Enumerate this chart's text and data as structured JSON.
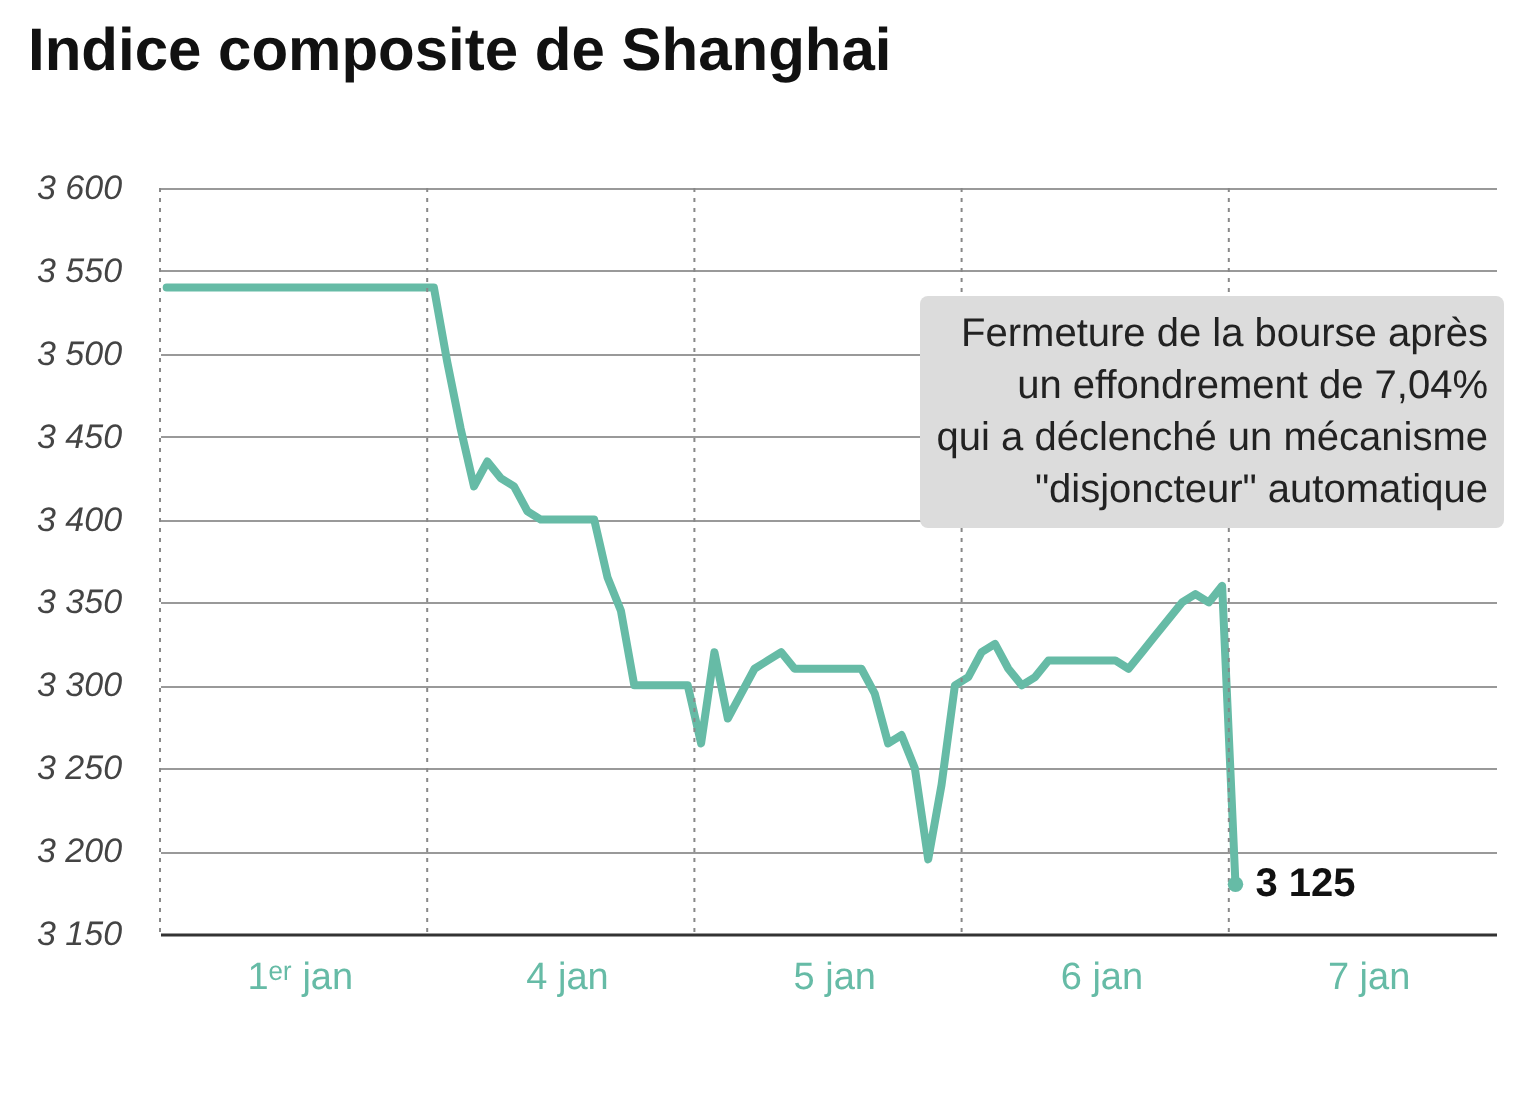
{
  "chart_data": {
    "type": "line",
    "title": "Indice composite de Shanghai",
    "categories": [
      null,
      null,
      null,
      null,
      null,
      null,
      null,
      null,
      null,
      null,
      "1ᵉʳ jan",
      null,
      null,
      null,
      null,
      null,
      null,
      null,
      null,
      null,
      null,
      null,
      null,
      null,
      null,
      null,
      null,
      null,
      null,
      null,
      "4 jan",
      null,
      null,
      null,
      null,
      null,
      null,
      null,
      null,
      null,
      null,
      null,
      null,
      null,
      null,
      null,
      null,
      null,
      null,
      null,
      "5 jan",
      null,
      null,
      null,
      null,
      null,
      null,
      null,
      null,
      null,
      null,
      null,
      null,
      null,
      null,
      null,
      null,
      null,
      null,
      null,
      "6 jan",
      null,
      null,
      null,
      null,
      null,
      null,
      null,
      null,
      null,
      null,
      null,
      null,
      null,
      null,
      null,
      null,
      null,
      null,
      null,
      "7 jan",
      null,
      null,
      null,
      null,
      null,
      null,
      null,
      null,
      null
    ],
    "series": [
      {
        "color": "#66bba6",
        "values": [
          3540,
          3540,
          3540,
          3540,
          3540,
          3540,
          3540,
          3540,
          3540,
          3540,
          3540,
          3540,
          3540,
          3540,
          3540,
          3540,
          3540,
          3540,
          3540,
          3540,
          3540,
          3495,
          3455,
          3420,
          3435,
          3425,
          3420,
          3405,
          3400,
          3400,
          3400,
          3400,
          3400,
          3365,
          3345,
          3300,
          3300,
          3300,
          3300,
          3300,
          3265,
          3320,
          3280,
          3295,
          3310,
          3315,
          3320,
          3310,
          3310,
          3310,
          3310,
          3310,
          3310,
          3295,
          3265,
          3270,
          3250,
          3195,
          3240,
          3300,
          3305,
          3320,
          3325,
          3310,
          3300,
          3305,
          3315,
          3315,
          3315,
          3315,
          3315,
          3315,
          3310,
          3320,
          3330,
          3340,
          3350,
          3355,
          3350,
          3360,
          3180,
          null,
          null,
          null,
          null,
          null,
          null,
          null,
          null,
          null,
          null,
          null,
          null,
          null,
          null,
          null,
          null,
          null,
          null,
          null
        ]
      }
    ],
    "ylim": [
      3150,
      3600
    ],
    "yticks": [
      {
        "value": 3150,
        "label": "3 150"
      },
      {
        "value": 3200,
        "label": "3 200"
      },
      {
        "value": 3250,
        "label": "3 250"
      },
      {
        "value": 3300,
        "label": "3 300"
      },
      {
        "value": 3350,
        "label": "3 350"
      },
      {
        "value": 3400,
        "label": "3 400"
      },
      {
        "value": 3450,
        "label": "3 450"
      },
      {
        "value": 3500,
        "label": "3 500"
      },
      {
        "value": 3550,
        "label": "3 550"
      },
      {
        "value": 3600,
        "label": "3 600"
      }
    ],
    "grid": true,
    "line_style": "solid",
    "annotations": [
      "Fermeture de la bourse après\nun effondrement de 7,04%\nqui a déclenché un mécanisme\n\"disjoncteur\" automatique",
      "3 125"
    ]
  }
}
